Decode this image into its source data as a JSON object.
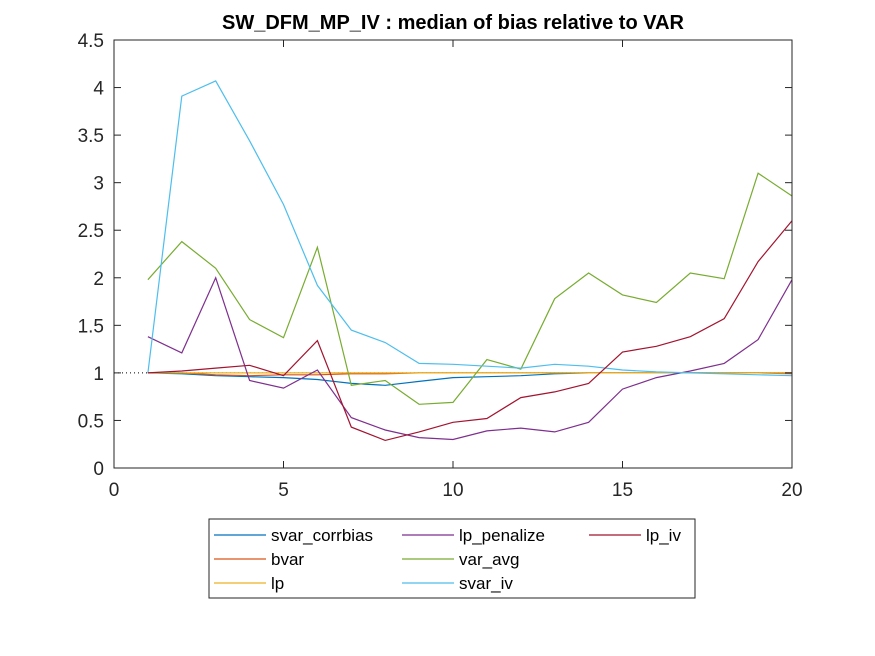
{
  "chart_data": {
    "type": "line",
    "title": "SW_DFM_MP_IV : median of bias relative to VAR",
    "xlabel": "",
    "ylabel": "",
    "xlim": [
      0,
      20
    ],
    "ylim": [
      0,
      4.5
    ],
    "x_ticks": [
      0,
      5,
      10,
      15,
      20
    ],
    "x_tick_labels": [
      "0",
      "5",
      "10",
      "15",
      "20"
    ],
    "y_ticks": [
      0,
      0.5,
      1,
      1.5,
      2,
      2.5,
      3,
      3.5,
      4,
      4.5
    ],
    "y_tick_labels": [
      "0",
      "0.5",
      "1",
      "1.5",
      "2",
      "2.5",
      "3",
      "3.5",
      "4",
      "4.5"
    ],
    "grid": false,
    "legend_position": "bottom-outside",
    "reference_line": {
      "y": 1,
      "style": "dotted",
      "color": "#000000"
    },
    "x": [
      1,
      2,
      3,
      4,
      5,
      6,
      7,
      8,
      9,
      10,
      11,
      12,
      13,
      14,
      15,
      16,
      17,
      18,
      19,
      20
    ],
    "series": [
      {
        "name": "svar_corrbias",
        "color": "#0072BD",
        "values": [
          1.0,
          0.99,
          0.97,
          0.96,
          0.95,
          0.93,
          0.89,
          0.87,
          0.91,
          0.95,
          0.96,
          0.97,
          0.99,
          1.0,
          1.0,
          1.0,
          1.0,
          1.0,
          1.0,
          1.0
        ]
      },
      {
        "name": "bvar",
        "color": "#D95319",
        "values": [
          1.0,
          1.0,
          0.98,
          0.97,
          0.98,
          0.98,
          0.99,
          0.99,
          1.0,
          1.0,
          1.0,
          1.0,
          1.0,
          1.0,
          1.0,
          1.0,
          1.0,
          1.0,
          1.0,
          0.99
        ]
      },
      {
        "name": "lp",
        "color": "#EDB120",
        "values": [
          1.0,
          1.0,
          1.0,
          1.0,
          1.0,
          1.0,
          1.0,
          1.0,
          1.0,
          1.0,
          1.0,
          1.0,
          1.0,
          1.0,
          1.0,
          1.0,
          1.0,
          1.0,
          1.0,
          1.0
        ]
      },
      {
        "name": "lp_penalize",
        "color": "#7E2F8E",
        "values": [
          1.38,
          1.21,
          2.0,
          0.92,
          0.84,
          1.03,
          0.53,
          0.4,
          0.32,
          0.3,
          0.39,
          0.42,
          0.38,
          0.48,
          0.83,
          0.95,
          1.02,
          1.1,
          1.35,
          1.98
        ]
      },
      {
        "name": "var_avg",
        "color": "#77AC30",
        "values": [
          1.98,
          2.38,
          2.1,
          1.56,
          1.37,
          2.32,
          0.87,
          0.92,
          0.67,
          0.69,
          1.14,
          1.04,
          1.78,
          2.05,
          1.82,
          1.74,
          2.05,
          1.99,
          3.1,
          2.86
        ]
      },
      {
        "name": "svar_iv",
        "color": "#4DBEEE",
        "values": [
          1.0,
          3.91,
          4.07,
          3.44,
          2.77,
          1.92,
          1.45,
          1.32,
          1.1,
          1.09,
          1.07,
          1.05,
          1.09,
          1.07,
          1.03,
          1.01,
          1.0,
          0.99,
          0.98,
          0.97
        ]
      },
      {
        "name": "lp_iv",
        "color": "#A2142F",
        "values": [
          1.0,
          1.02,
          1.05,
          1.08,
          0.97,
          1.34,
          0.43,
          0.29,
          0.38,
          0.48,
          0.52,
          0.74,
          0.8,
          0.89,
          1.22,
          1.28,
          1.38,
          1.57,
          2.17,
          2.6
        ]
      }
    ],
    "legend_order": [
      "svar_corrbias",
      "lp_penalize",
      "lp_iv",
      "bvar",
      "var_avg",
      "lp",
      "svar_iv"
    ]
  }
}
